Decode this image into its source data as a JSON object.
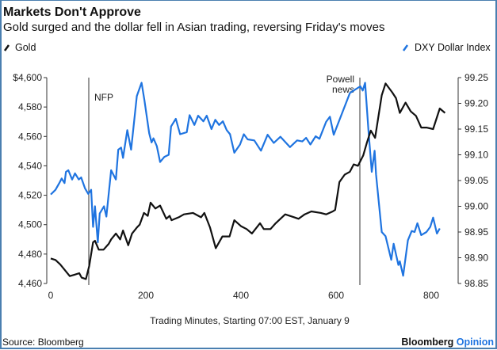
{
  "chart_data": {
    "type": "line",
    "title": "Markets Don't Approve",
    "subtitle": "Gold surged and the dollar fell in Asian trading, reversing Friday's moves",
    "xlabel": "Trading Minutes, Starting 07:00 EST, January 9",
    "xlim": [
      0,
      850
    ],
    "x_ticks": [
      0,
      200,
      400,
      600,
      800
    ],
    "left_axis": {
      "ylim": [
        4460,
        4600
      ],
      "ticks": [
        4460,
        4480,
        4500,
        4520,
        4540,
        4560,
        4580,
        4600
      ],
      "tick_labels": [
        "4,460",
        "4,480",
        "4,500",
        "4,520",
        "4,540",
        "4,560",
        "4,580",
        "$4,600"
      ]
    },
    "right_axis": {
      "ylim": [
        98.85,
        99.25
      ],
      "ticks": [
        98.85,
        98.9,
        98.95,
        99.0,
        99.05,
        99.1,
        99.15,
        99.2,
        99.25
      ],
      "tick_labels": [
        "98.85",
        "98.90",
        "98.95",
        "99.00",
        "99.05",
        "99.10",
        "99.15",
        "99.20",
        "99.25"
      ]
    },
    "grid": false,
    "legend_placement": "top",
    "annotations": [
      {
        "label": "NFP",
        "x": 80
      },
      {
        "label_lines": [
          "Powell",
          "news"
        ],
        "x": 650
      }
    ],
    "series": [
      {
        "name": "Gold",
        "axis": "left",
        "color": "#111111",
        "x": [
          0,
          10,
          20,
          30,
          40,
          50,
          60,
          65,
          74,
          81,
          89,
          93,
          101,
          111,
          122,
          127,
          137,
          146,
          152,
          163,
          171,
          181,
          187,
          196,
          204,
          210,
          220,
          230,
          243,
          250,
          254,
          269,
          280,
          299,
          316,
          323,
          335,
          347,
          361,
          376,
          386,
          400,
          412,
          423,
          440,
          448,
          462,
          473,
          493,
          512,
          521,
          534,
          548,
          568,
          579,
          593,
          598,
          607,
          618,
          629,
          637,
          646,
          657,
          665,
          673,
          682,
          696,
          704,
          718,
          726,
          734,
          746,
          757,
          768,
          779,
          790,
          804,
          818,
          829
        ],
        "y": [
          4477,
          4476,
          4473,
          4469,
          4465,
          4466,
          4467,
          4464,
          4463,
          4472,
          4488,
          4489,
          4483,
          4483,
          4487,
          4490,
          4494,
          4490,
          4496,
          4486,
          4494,
          4498,
          4500,
          4508,
          4506,
          4515,
          4511,
          4513,
          4504,
          4506,
          4503,
          4505,
          4507,
          4508,
          4505,
          4508,
          4498,
          4484,
          4492,
          4492,
          4503,
          4499,
          4497,
          4494,
          4501,
          4497,
          4497,
          4501,
          4507,
          4505,
          4504,
          4507,
          4509,
          4508,
          4507,
          4509,
          4510,
          4529,
          4534,
          4536,
          4541,
          4540,
          4547,
          4556,
          4564,
          4559,
          4588,
          4596,
          4590,
          4586,
          4576,
          4583,
          4577,
          4574,
          4566,
          4566,
          4565,
          4579,
          4576
        ]
      },
      {
        "name": "DXY Dollar Index",
        "axis": "right",
        "color": "#1f74e0",
        "x": [
          0,
          10,
          18,
          23,
          29,
          32,
          37,
          45,
          51,
          59,
          64,
          72,
          79,
          85,
          89,
          93,
          99,
          103,
          112,
          117,
          127,
          137,
          142,
          148,
          152,
          161,
          169,
          181,
          191,
          197,
          207,
          212,
          216,
          223,
          230,
          239,
          248,
          253,
          263,
          272,
          286,
          292,
          302,
          310,
          321,
          328,
          338,
          346,
          354,
          362,
          370,
          377,
          386,
          398,
          406,
          414,
          428,
          442,
          456,
          469,
          483,
          503,
          518,
          529,
          537,
          546,
          557,
          565,
          579,
          587,
          595,
          629,
          637,
          651,
          656,
          661,
          668,
          675,
          681,
          684,
          696,
          704,
          716,
          721,
          731,
          734,
          741,
          751,
          759,
          765,
          771,
          779,
          790,
          798,
          804,
          812,
          818
        ],
        "y": [
          99.023,
          99.032,
          99.045,
          99.054,
          99.045,
          99.067,
          99.07,
          99.052,
          99.064,
          99.052,
          99.056,
          99.035,
          99.024,
          99.032,
          98.96,
          99.0,
          98.93,
          98.986,
          99.0,
          98.98,
          99.07,
          99.052,
          99.11,
          99.114,
          99.094,
          99.148,
          99.11,
          99.214,
          99.24,
          99.206,
          99.142,
          99.124,
          99.132,
          99.117,
          99.086,
          99.096,
          99.1,
          99.155,
          99.17,
          99.14,
          99.144,
          99.177,
          99.158,
          99.176,
          99.165,
          99.176,
          99.15,
          99.168,
          99.158,
          99.165,
          99.148,
          99.14,
          99.104,
          99.12,
          99.14,
          99.13,
          99.128,
          99.108,
          99.139,
          99.123,
          99.135,
          99.115,
          99.128,
          99.126,
          99.133,
          99.12,
          99.136,
          99.131,
          99.164,
          99.174,
          99.139,
          99.22,
          99.225,
          99.233,
          99.225,
          99.24,
          99.148,
          99.067,
          99.108,
          99.062,
          98.95,
          98.942,
          98.896,
          98.927,
          98.886,
          98.893,
          98.865,
          98.934,
          98.952,
          98.95,
          98.967,
          98.944,
          98.95,
          98.96,
          98.978,
          98.947,
          98.957
        ]
      }
    ]
  },
  "source": "Source: Bloomberg",
  "brand": {
    "name": "Bloomberg",
    "suffix": "Opinion",
    "suffix_color": "#1f74e0"
  }
}
